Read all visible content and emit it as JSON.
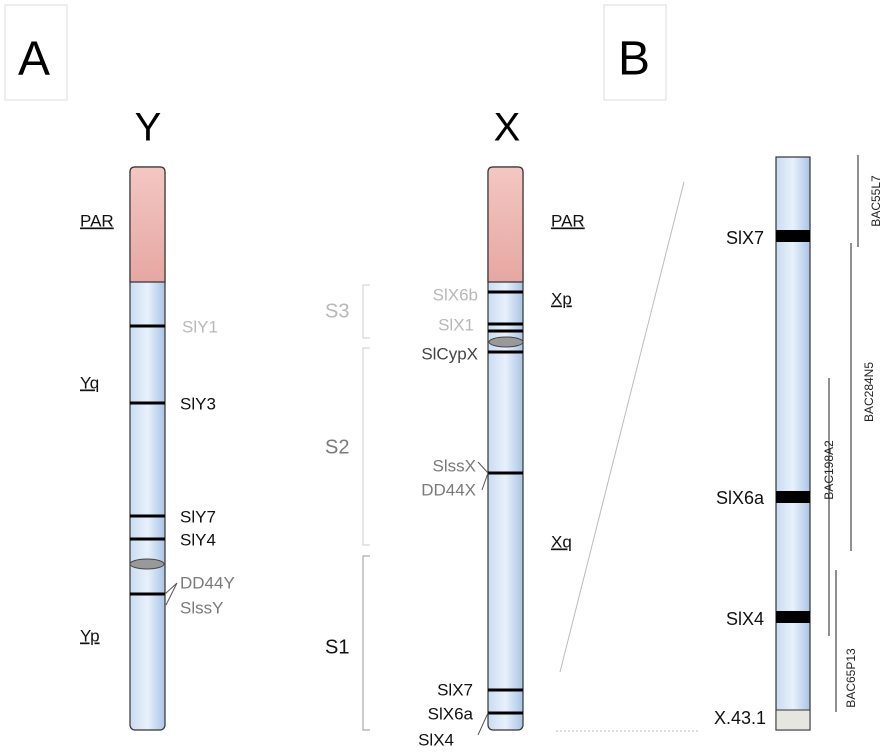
{
  "panels": [
    "A",
    "B"
  ],
  "chromosomes": [
    "Y",
    "X"
  ],
  "regions_y": [
    "PAR",
    "Yq",
    "Yp"
  ],
  "regions_x": [
    "PAR",
    "Xp",
    "Xq"
  ],
  "strata": [
    "S3",
    "S2",
    "S1"
  ],
  "genes_y": [
    "SlY1",
    "SlY3",
    "SlY7",
    "SlY4",
    "DD44Y",
    "SlssY"
  ],
  "genes_x": [
    "SlX6b",
    "SlX1",
    "SlCypX",
    "SlssX",
    "DD44X",
    "SlX7",
    "SlX6a",
    "SlX4"
  ],
  "zoom_genes": [
    "SlX7",
    "SlX6a",
    "SlX4",
    "X.43.1"
  ],
  "bacs": [
    "BAC55L7",
    "BAC284N5",
    "BAC198A2",
    "BAC65P13"
  ]
}
